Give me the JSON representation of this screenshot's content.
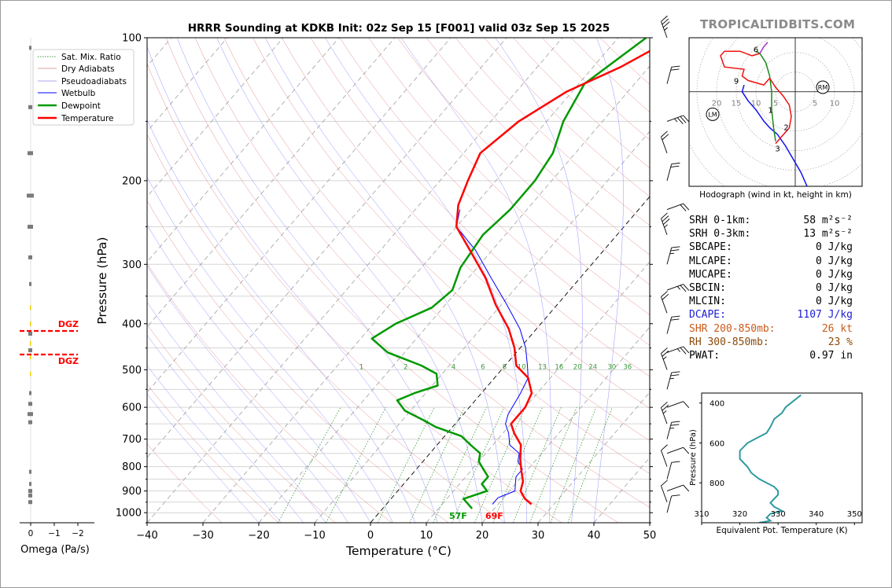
{
  "title": "HRRR Sounding at KDKB Init: 02z Sep 15 [F001] valid 03z Sep 15 2025",
  "brand": "TROPICALTIDBITS.COM",
  "colors": {
    "temperature": "#ff0000",
    "dewpoint": "#009900",
    "wetbulb": "#0000ff",
    "dry_adiabat": "#e07070",
    "pseudo_adiabat": "#8080ff",
    "mixing_ratio": "#3a9a3a",
    "dcape": "#1c1cd6",
    "shear": "#cc5a1a",
    "rh": "#8b4a0a",
    "theta_e": "#2f9aa0",
    "hodo_green": "#1a8a1a",
    "hodo_red": "#ee1111",
    "hodo_blue": "#1111ee",
    "hodo_purple": "#aa33cc"
  },
  "chart_data": [
    {
      "type": "line",
      "name": "skewt",
      "xlabel": "Temperature (°C)",
      "ylabel": "Pressure (hPa)",
      "xlim": [
        -40,
        50
      ],
      "ylim": [
        1050,
        100
      ],
      "y_scale": "log",
      "x_ticks": [
        -40,
        -30,
        -20,
        -10,
        0,
        10,
        20,
        30,
        40,
        50
      ],
      "y_ticks": [
        100,
        200,
        300,
        400,
        500,
        600,
        700,
        800,
        900,
        1000
      ],
      "legend": [
        "Sat. Mix. Ratio",
        "Dry Adiabats",
        "Pseudoadiabats",
        "Wetbulb",
        "Dewpoint",
        "Temperature"
      ],
      "legend_position": "top-left",
      "mixing_ratio_labels": [
        "1",
        "2",
        "4",
        "6",
        "8",
        "10",
        "13",
        "16",
        "20",
        "24",
        "30",
        "36"
      ],
      "series": [
        {
          "name": "Temperature",
          "points": [
            [
              26,
              960
            ],
            [
              24,
              935
            ],
            [
              22,
              900
            ],
            [
              21,
              860
            ],
            [
              19,
              815
            ],
            [
              17,
              770
            ],
            [
              15,
              720
            ],
            [
              12,
              680
            ],
            [
              10,
              650
            ],
            [
              10,
              600
            ],
            [
              9,
              560
            ],
            [
              6,
              520
            ],
            [
              2,
              490
            ],
            [
              -1,
              450
            ],
            [
              -5,
              410
            ],
            [
              -11,
              365
            ],
            [
              -17,
              320
            ],
            [
              -24,
              280
            ],
            [
              -30,
              250
            ],
            [
              -33,
              225
            ],
            [
              -35,
              200
            ],
            [
              -37,
              175
            ],
            [
              -35,
              150
            ],
            [
              -31,
              130
            ],
            [
              -25,
              115
            ],
            [
              -20,
              100
            ]
          ]
        },
        {
          "name": "Dewpoint",
          "points": [
            [
              16,
              980
            ],
            [
              13,
              935
            ],
            [
              16,
              900
            ],
            [
              14,
              870
            ],
            [
              14,
              840
            ],
            [
              12,
              810
            ],
            [
              10,
              780
            ],
            [
              9,
              750
            ],
            [
              6,
              720
            ],
            [
              3,
              690
            ],
            [
              -3,
              660
            ],
            [
              -6,
              640
            ],
            [
              -11,
              610
            ],
            [
              -14,
              580
            ],
            [
              -12,
              560
            ],
            [
              -9,
              540
            ],
            [
              -11,
              510
            ],
            [
              -15,
              490
            ],
            [
              -23,
              460
            ],
            [
              -28,
              430
            ],
            [
              -26,
              400
            ],
            [
              -22,
              370
            ],
            [
              -21,
              340
            ],
            [
              -23,
              305
            ],
            [
              -24,
              260
            ],
            [
              -23,
              230
            ],
            [
              -23,
              200
            ],
            [
              -24,
              175
            ],
            [
              -27,
              150
            ],
            [
              -29,
              125
            ],
            [
              -25,
              100
            ]
          ]
        },
        {
          "name": "Wetbulb",
          "points": [
            [
              19,
              960
            ],
            [
              19,
              930
            ],
            [
              21,
              900
            ],
            [
              20,
              870
            ],
            [
              19,
              840
            ],
            [
              19,
              810
            ],
            [
              17,
              780
            ],
            [
              16,
              750
            ],
            [
              13,
              720
            ],
            [
              11,
              680
            ],
            [
              9,
              650
            ],
            [
              8,
              620
            ],
            [
              7,
              560
            ],
            [
              6,
              520
            ],
            [
              4,
              490
            ],
            [
              1,
              450
            ],
            [
              -3,
              410
            ],
            [
              -9,
              365
            ],
            [
              -16,
              320
            ],
            [
              -23,
              280
            ],
            [
              -30,
              250
            ],
            [
              -32,
              230
            ]
          ]
        }
      ],
      "surface_labels": {
        "dewpoint": "57F",
        "temperature": "69F"
      },
      "dgz_label": "DGZ"
    },
    {
      "type": "scatter",
      "name": "omega",
      "xlabel": "Omega (Pa/s)",
      "x_ticks": [
        "0",
        "−1",
        "−2"
      ],
      "xlim": [
        0.1,
        -2
      ]
    },
    {
      "type": "line",
      "name": "hodograph",
      "caption": "Hodograph (wind in kt, height in km)",
      "ring_labels": [
        "20",
        "15",
        "10",
        "5",
        "5",
        "10"
      ],
      "height_labels": [
        "1",
        "2",
        "3",
        "6",
        "9"
      ],
      "storm_motion": [
        "RM",
        "LM"
      ],
      "xlim": [
        -27,
        17
      ],
      "ylim": [
        -21,
        12
      ],
      "segments": [
        {
          "color": "hodo_blue",
          "points": [
            [
              3,
              -21
            ],
            [
              1.5,
              -18
            ],
            [
              -0.5,
              -15
            ],
            [
              -2.5,
              -12
            ],
            [
              -4.5,
              -9.5
            ],
            [
              -6.5,
              -8
            ],
            [
              -8,
              -6.5
            ],
            [
              -10,
              -4
            ],
            [
              -12,
              -2
            ],
            [
              -13.5,
              0
            ],
            [
              -13,
              1.5
            ]
          ]
        },
        {
          "color": "hodo_green",
          "points": [
            [
              -5,
              -11
            ],
            [
              -5.5,
              -8
            ],
            [
              -6,
              -4
            ],
            [
              -6,
              0
            ],
            [
              -6.5,
              3.5
            ],
            [
              -7.5,
              6.5
            ],
            [
              -9,
              8.5
            ],
            [
              -10,
              9
            ]
          ]
        },
        {
          "color": "hodo_red",
          "points": [
            [
              -5,
              -11.5
            ],
            [
              -3.5,
              -10
            ],
            [
              -1.5,
              -8
            ],
            [
              -1,
              -5.5
            ],
            [
              -1.5,
              -3
            ],
            [
              -3,
              -1
            ],
            [
              -5,
              1
            ],
            [
              -6.5,
              3
            ],
            [
              -8,
              1.5
            ],
            [
              -12,
              2.5
            ],
            [
              -13.5,
              3.5
            ],
            [
              -13,
              5
            ],
            [
              -18,
              5.5
            ],
            [
              -19,
              8
            ],
            [
              -18,
              9
            ],
            [
              -14,
              9
            ],
            [
              -11,
              8
            ],
            [
              -9,
              8.5
            ]
          ]
        },
        {
          "color": "hodo_purple",
          "points": [
            [
              -9,
              8.5
            ],
            [
              -8,
              10
            ],
            [
              -7,
              11
            ]
          ]
        }
      ],
      "rm": [
        7,
        1
      ],
      "lm": [
        -21,
        -5
      ]
    },
    {
      "type": "line",
      "name": "theta_e",
      "xlabel": "Equivalent Pot. Temperature (K)",
      "ylabel": "Pressure (hPa)",
      "xlim": [
        310,
        352
      ],
      "ylim": [
        1000,
        350
      ],
      "x_ticks": [
        310,
        320,
        330,
        340,
        350
      ],
      "y_ticks": [
        400,
        600,
        800
      ],
      "points": [
        [
          325,
          1000
        ],
        [
          328,
          990
        ],
        [
          327,
          975
        ],
        [
          328,
          955
        ],
        [
          331,
          940
        ],
        [
          329,
          920
        ],
        [
          328,
          900
        ],
        [
          329,
          880
        ],
        [
          330,
          860
        ],
        [
          330,
          840
        ],
        [
          329,
          820
        ],
        [
          327,
          800
        ],
        [
          325,
          780
        ],
        [
          323,
          750
        ],
        [
          322,
          720
        ],
        [
          320,
          680
        ],
        [
          320,
          640
        ],
        [
          321,
          620
        ],
        [
          322,
          600
        ],
        [
          324,
          580
        ],
        [
          327,
          550
        ],
        [
          328,
          520
        ],
        [
          329,
          480
        ],
        [
          331,
          450
        ],
        [
          332,
          420
        ],
        [
          334,
          390
        ],
        [
          336,
          360
        ]
      ]
    }
  ],
  "params": [
    {
      "label": "SRH 0-1km:",
      "value": "58 m²s⁻²",
      "color": "#000000"
    },
    {
      "label": "SRH 0-3km:",
      "value": "13 m²s⁻²",
      "color": "#000000"
    },
    {
      "label": "SBCAPE:",
      "value": "0 J/kg",
      "color": "#000000"
    },
    {
      "label": "MLCAPE:",
      "value": "0 J/kg",
      "color": "#000000"
    },
    {
      "label": "MUCAPE:",
      "value": "0 J/kg",
      "color": "#000000"
    },
    {
      "label": "SBCIN:",
      "value": "0 J/kg",
      "color": "#000000"
    },
    {
      "label": "MLCIN:",
      "value": "0 J/kg",
      "color": "#000000"
    },
    {
      "label": "DCAPE:",
      "value": "1107 J/kg",
      "color": "#1c1cd6"
    },
    {
      "label": "SHR 200-850mb:",
      "value": "26 kt",
      "color": "#cc5a1a"
    },
    {
      "label": "RH 300-850mb:",
      "value": "23 %",
      "color": "#8b4a0a"
    },
    {
      "label": "PWAT:",
      "value": "0.97 in",
      "color": "#000000"
    }
  ]
}
